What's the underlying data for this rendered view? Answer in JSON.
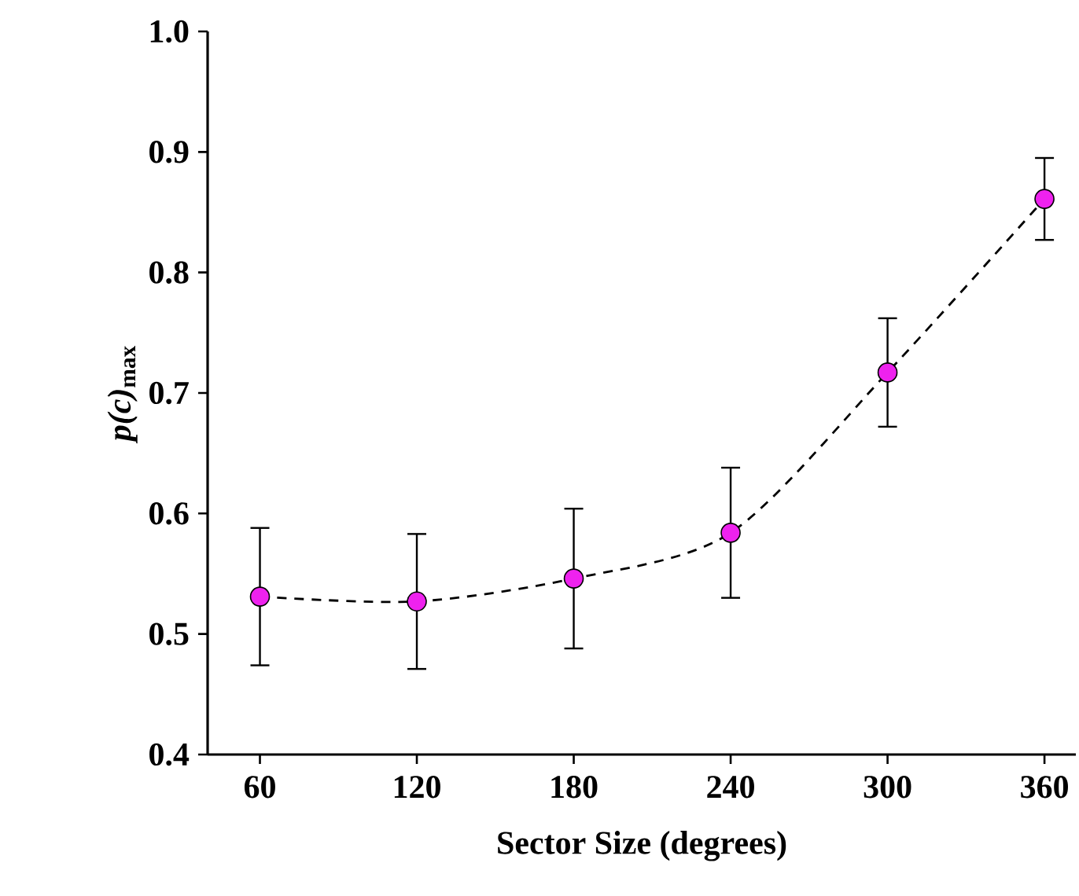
{
  "chart_data": {
    "type": "line",
    "xlabel": "Sector Size (degrees)",
    "ylabel": "*p(c)*$_{max}$",
    "x": [
      60,
      120,
      180,
      240,
      300,
      360
    ],
    "values": [
      0.531,
      0.527,
      0.546,
      0.584,
      0.717,
      0.861
    ],
    "errors": [
      0.057,
      0.056,
      0.058,
      0.054,
      0.045,
      0.034
    ],
    "color": "#ee22ee",
    "marker": "circle",
    "line_style": "dashed",
    "grid": false,
    "xlim": [
      40,
      372
    ],
    "xticks": [
      60,
      120,
      180,
      240,
      300,
      360
    ],
    "ylim": [
      0.4,
      1.0
    ],
    "yticks": [
      0.4,
      0.5,
      0.6,
      0.7,
      0.8,
      0.9,
      {
        "value": 1.0,
        "label": "1.0"
      }
    ]
  }
}
